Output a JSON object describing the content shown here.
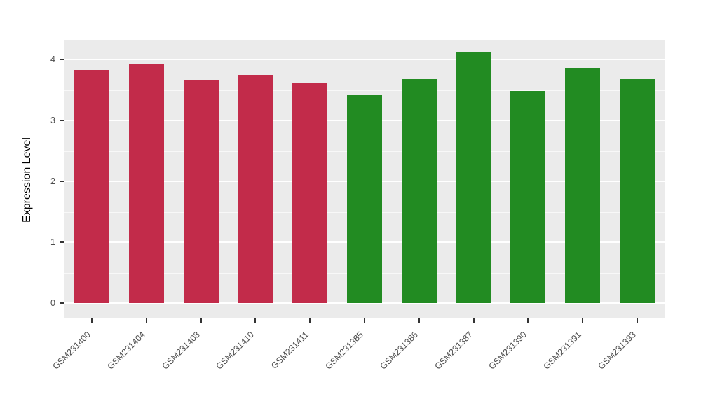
{
  "chart_data": {
    "type": "bar",
    "title": "",
    "xlabel": "",
    "ylabel": "Expression Level",
    "ylim": [
      0,
      4.32
    ],
    "yticks": [
      0,
      1,
      2,
      3,
      4
    ],
    "minor_ticks": [
      0.5,
      1.5,
      2.5,
      3.5
    ],
    "grid": "major+minor, white on gray panel",
    "legend": "none",
    "panel_bg": "#EBEBEB",
    "grid_color": "#FFFFFF",
    "categories": [
      "GSM231400",
      "GSM231404",
      "GSM231408",
      "GSM231410",
      "GSM231411",
      "GSM231385",
      "GSM231386",
      "GSM231387",
      "GSM231390",
      "GSM231391",
      "GSM231393"
    ],
    "values": [
      3.83,
      3.92,
      3.66,
      3.75,
      3.62,
      3.41,
      3.68,
      4.11,
      3.48,
      3.86,
      3.68
    ],
    "bar_colors": [
      "#C22B4A",
      "#C22B4A",
      "#C22B4A",
      "#C22B4A",
      "#C22B4A",
      "#228B22",
      "#228B22",
      "#228B22",
      "#228B22",
      "#228B22",
      "#228B22"
    ],
    "group_colors": {
      "left_group": "#C22B4A",
      "right_group": "#228B22"
    }
  }
}
